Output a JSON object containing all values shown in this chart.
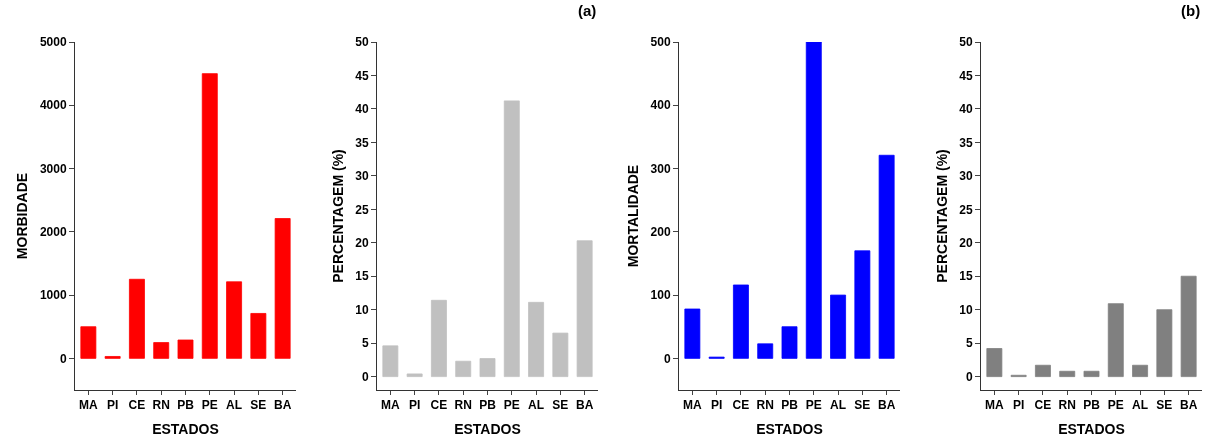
{
  "chart_data": [
    {
      "type": "bar",
      "categories": [
        "MA",
        "PI",
        "CE",
        "RN",
        "PB",
        "PE",
        "AL",
        "SE",
        "BA"
      ],
      "values": [
        500,
        30,
        1250,
        250,
        290,
        4500,
        1210,
        710,
        2210
      ],
      "color": "#ff0000",
      "xlabel": "ESTADOS",
      "ylabel": "MORBIDADE",
      "ylim": [
        -500,
        5000
      ],
      "yticks": [
        0,
        1000,
        2000,
        3000,
        4000,
        5000
      ],
      "grid": false
    },
    {
      "type": "bar",
      "categories": [
        "MA",
        "PI",
        "CE",
        "RN",
        "PB",
        "PE",
        "AL",
        "SE",
        "BA"
      ],
      "values": [
        4.6,
        0.4,
        11.4,
        2.3,
        2.7,
        41.2,
        11.1,
        6.5,
        20.3
      ],
      "color": "#c0c0c0",
      "xlabel": "ESTADOS",
      "ylabel": "PERCENTAGEM (%)",
      "ylim": [
        -2,
        50
      ],
      "yticks": [
        0,
        5,
        10,
        15,
        20,
        25,
        30,
        35,
        40,
        45,
        50
      ],
      "grid": false,
      "annotations": [
        "(a)"
      ]
    },
    {
      "type": "bar",
      "categories": [
        "MA",
        "PI",
        "CE",
        "RN",
        "PB",
        "PE",
        "AL",
        "SE",
        "BA"
      ],
      "values": [
        78,
        2,
        116,
        23,
        50,
        500,
        100,
        170,
        321
      ],
      "color": "#0000ff",
      "xlabel": "ESTADOS",
      "ylabel": "MORTALIDADE",
      "ylim": [
        -50,
        500
      ],
      "yticks": [
        0,
        100,
        200,
        300,
        400,
        500
      ],
      "grid": false
    },
    {
      "type": "bar",
      "categories": [
        "MA",
        "PI",
        "CE",
        "RN",
        "PB",
        "PE",
        "AL",
        "SE",
        "BA"
      ],
      "values": [
        4.2,
        0.2,
        1.7,
        0.8,
        0.8,
        10.9,
        1.7,
        10,
        15
      ],
      "color": "#808080",
      "xlabel": "ESTADOS",
      "ylabel": "PERCENTAGEM (%)",
      "ylim": [
        -2,
        50
      ],
      "yticks": [
        0,
        5,
        10,
        15,
        20,
        25,
        30,
        35,
        40,
        45,
        50
      ],
      "grid": false,
      "annotations": [
        "(b)"
      ]
    }
  ]
}
